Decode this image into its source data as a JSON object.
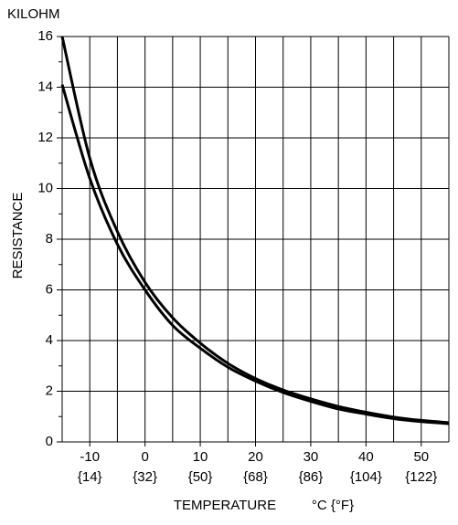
{
  "chart_data": {
    "type": "line",
    "y_unit": "KILOHM",
    "ylabel": "RESISTANCE",
    "xlabel": "TEMPERATURE",
    "xlabel_unit": "°C {°F}",
    "x": [
      -15,
      -10,
      -5,
      0,
      5,
      10,
      15,
      20,
      25,
      30,
      35,
      40,
      45,
      50,
      55
    ],
    "series": [
      {
        "color": "#000000",
        "values": [
          16.0,
          11.2,
          8.3,
          6.3,
          4.9,
          3.9,
          3.1,
          2.5,
          2.05,
          1.7,
          1.4,
          1.17,
          0.98,
          0.85,
          0.76
        ]
      },
      {
        "color": "#000000",
        "values": [
          14.1,
          10.4,
          7.8,
          6.0,
          4.6,
          3.7,
          2.95,
          2.4,
          1.95,
          1.6,
          1.3,
          1.1,
          0.92,
          0.8,
          0.72
        ]
      }
    ],
    "xlim": [
      -15,
      55
    ],
    "ylim": [
      0,
      16
    ],
    "xticks": [
      -10,
      0,
      10,
      20,
      30,
      40,
      50
    ],
    "xtick_fahrenheit": [
      "{14}",
      "{32}",
      "{50}",
      "{68}",
      "{86}",
      "{104}",
      "{122}"
    ],
    "x_minor_grid": [
      -15,
      -5,
      5,
      15,
      25,
      35,
      45,
      55
    ],
    "yticks": [
      0,
      2,
      4,
      6,
      8,
      10,
      12,
      14,
      16
    ],
    "y_minor_ticks": [
      1,
      3,
      5,
      7,
      9,
      11,
      13,
      15
    ],
    "grid": true
  }
}
